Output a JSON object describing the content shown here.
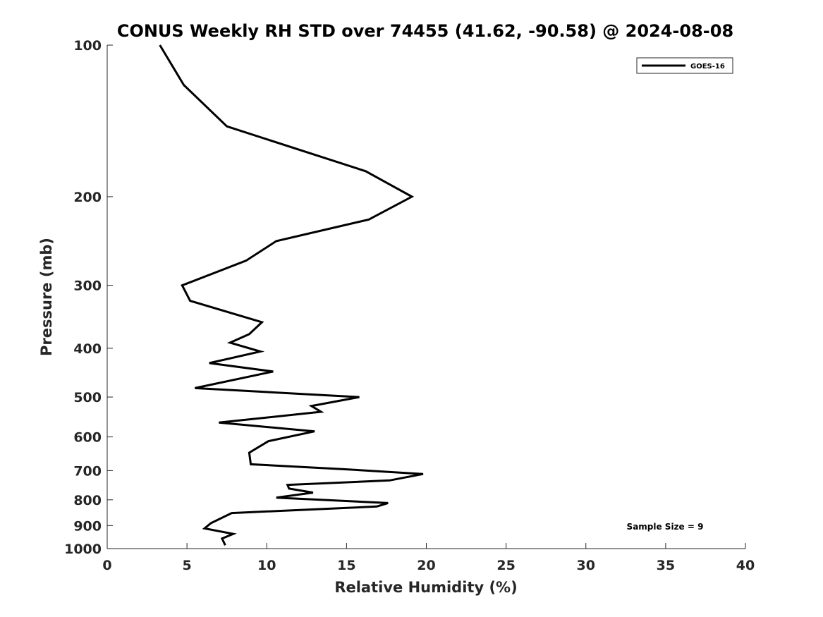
{
  "chart_data": {
    "type": "line",
    "title": "CONUS Weekly RH STD over 74455 (41.62, -90.58) @ 2024-08-08",
    "xlabel": "Relative Humidity (%)",
    "ylabel": "Pressure (mb)",
    "xlim": [
      0,
      40
    ],
    "ylim": [
      100,
      1000
    ],
    "y_scale": "log",
    "y_reversed": true,
    "x_ticks": [
      0,
      5,
      10,
      15,
      20,
      25,
      30,
      35,
      40
    ],
    "y_ticks": [
      100,
      200,
      300,
      400,
      500,
      600,
      700,
      800,
      900,
      1000
    ],
    "grid": false,
    "legend_position": "top-right",
    "series": [
      {
        "name": "GOES-16",
        "color": "#000000",
        "x": [
          3.3,
          4.8,
          7.5,
          16.2,
          19.1,
          16.4,
          10.6,
          8.7,
          4.7,
          5.2,
          9.7,
          8.9,
          7.7,
          9.6,
          6.4,
          10.4,
          5.5,
          15.8,
          12.8,
          13.4,
          7.0,
          13.0,
          10.1,
          8.9,
          9.0,
          15.0,
          19.8,
          17.7,
          11.3,
          11.4,
          12.9,
          10.6,
          17.6,
          16.9,
          7.8,
          6.5,
          6.1,
          7.9,
          7.2,
          7.4
        ],
        "y": [
          100,
          120,
          145,
          178,
          200,
          222,
          245,
          268,
          300,
          322,
          355,
          375,
          390,
          406,
          428,
          445,
          480,
          500,
          521,
          535,
          562,
          585,
          612,
          645,
          680,
          696,
          711,
          732,
          747,
          760,
          774,
          792,
          812,
          825,
          850,
          890,
          912,
          935,
          955,
          985
        ]
      }
    ],
    "annotations": [
      "Sample Size = 9"
    ]
  }
}
